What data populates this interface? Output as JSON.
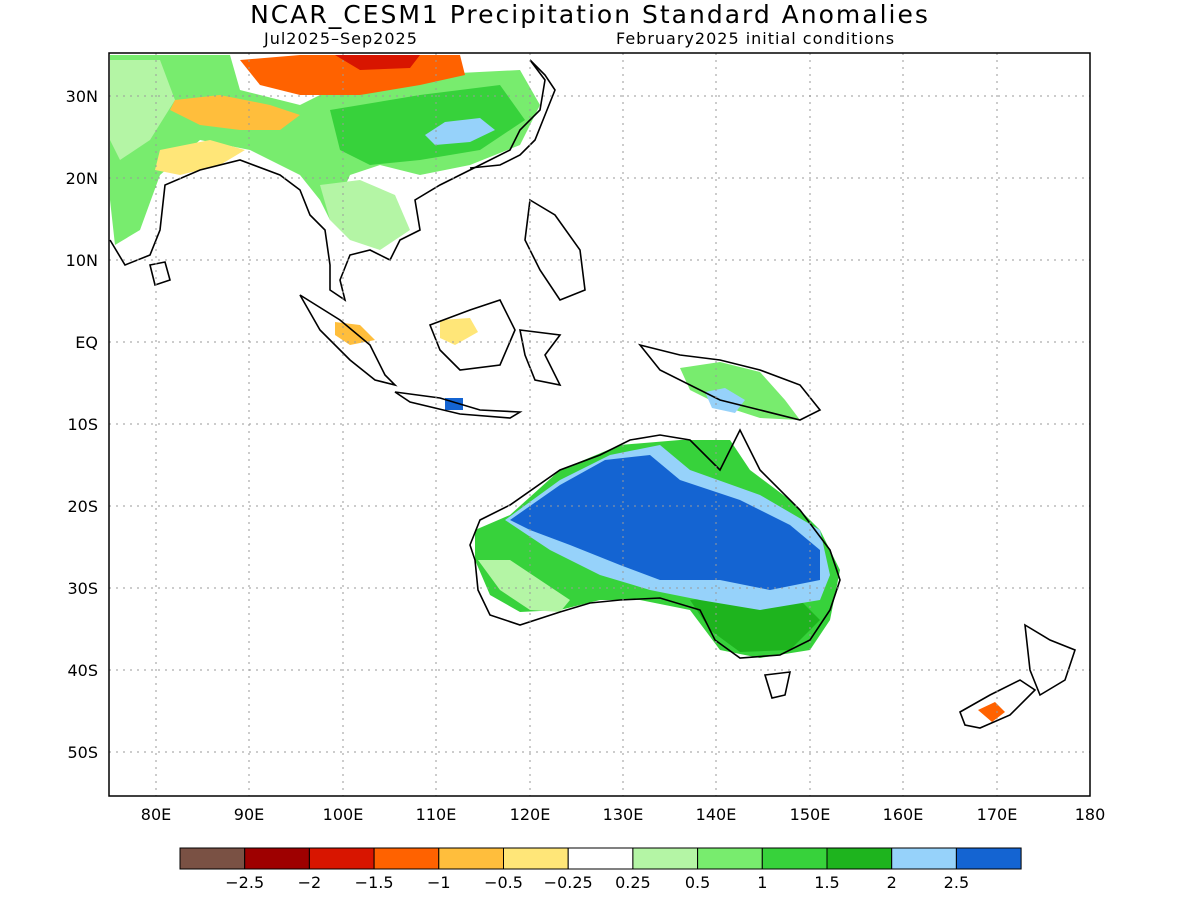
{
  "title": "NCAR_CESM1 Precipitation Standard Anomalies",
  "subtitle_left": "Jul2025–Sep2025",
  "subtitle_right": "February2025 initial conditions",
  "lat_labels": [
    "30N",
    "20N",
    "10N",
    "EQ",
    "10S",
    "20S",
    "30S",
    "40S",
    "50S"
  ],
  "lon_labels": [
    "80E",
    "90E",
    "100E",
    "110E",
    "120E",
    "130E",
    "140E",
    "150E",
    "160E",
    "170E",
    "180"
  ],
  "colorbar": {
    "colors": [
      "#7a5144",
      "#9e0000",
      "#d81500",
      "#ff6200",
      "#ffbe3c",
      "#ffe678",
      "#ffffff",
      "#b4f5a5",
      "#78ec6e",
      "#37d23b",
      "#1eb41e",
      "#96d2fa",
      "#1464d2"
    ],
    "labels": [
      "−2.5",
      "−2",
      "−1.5",
      "−1",
      "−0.5",
      "−0.25",
      "0.25",
      "0.5",
      "1",
      "1.5",
      "2",
      "2.5"
    ]
  }
}
